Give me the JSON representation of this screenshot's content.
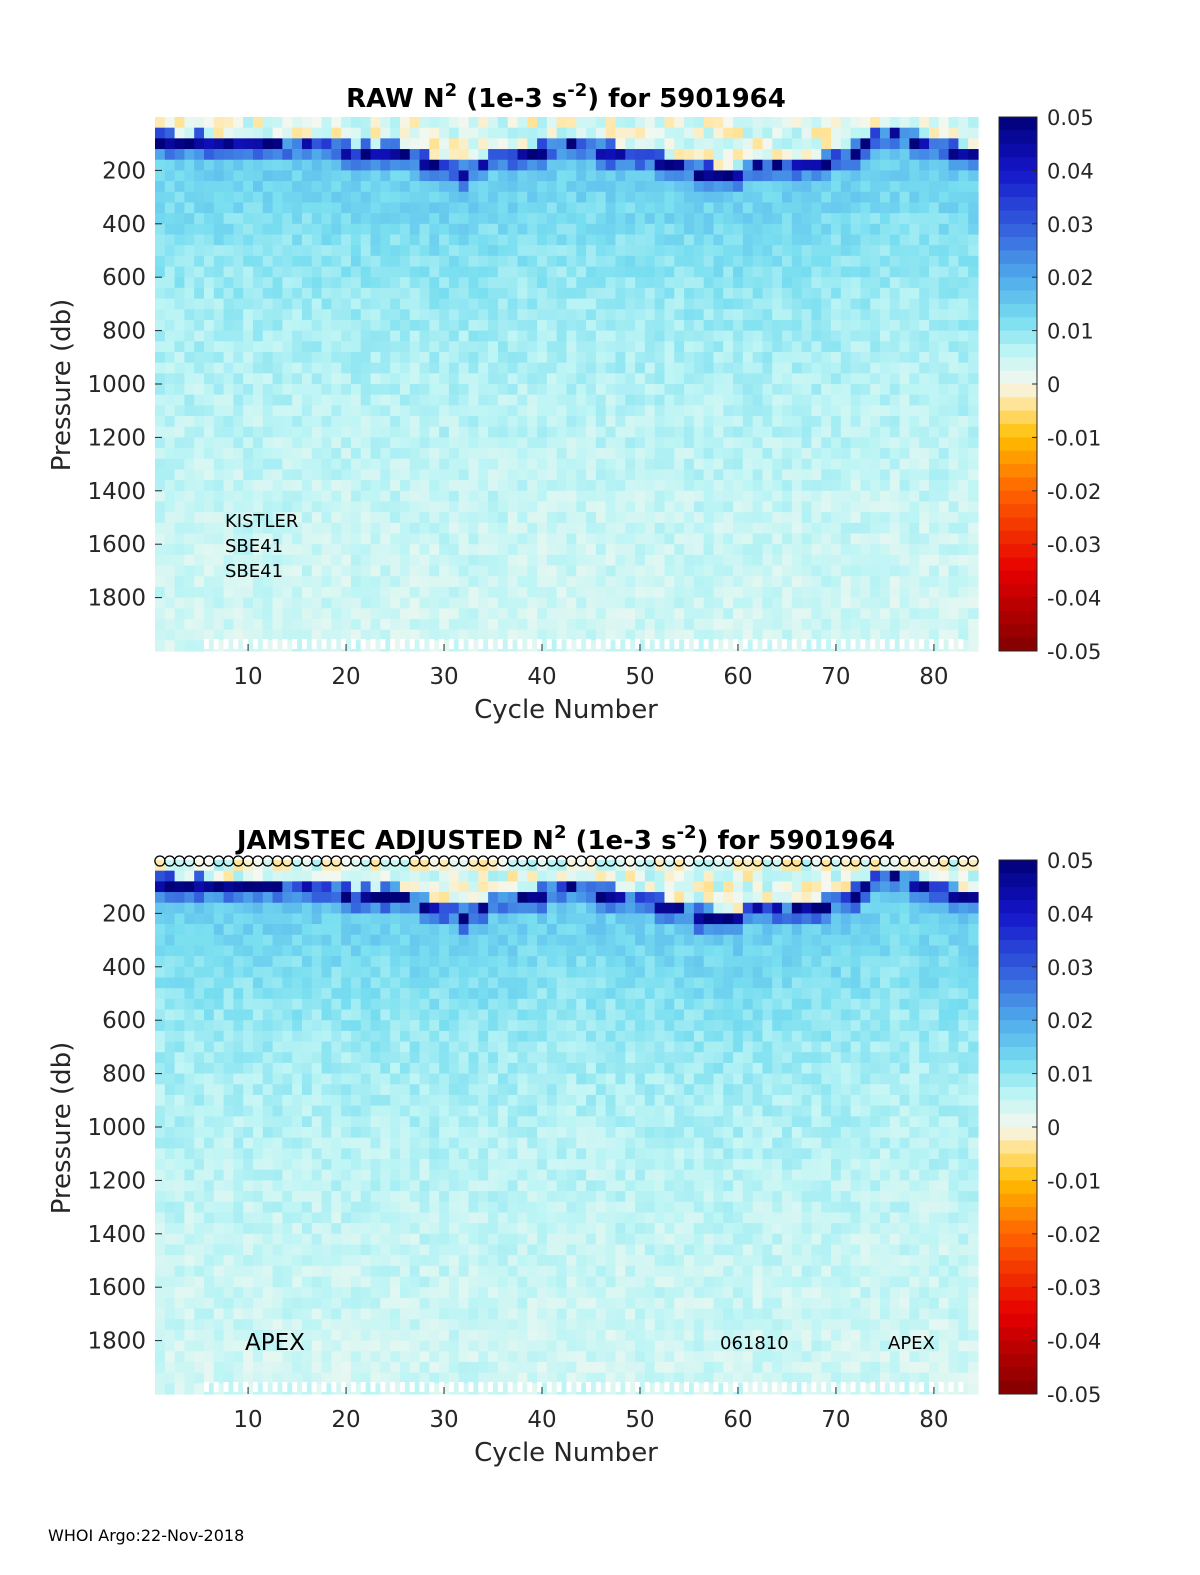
{
  "footer": "WHOI Argo:22-Nov-2018",
  "chart_data": [
    {
      "type": "heatmap",
      "title_parts": {
        "main": "RAW N",
        "sup1": "2",
        "mid": " (1e-3 s",
        "sup2": "-2",
        "end": ") for 5901964"
      },
      "xlabel": "Cycle Number",
      "ylabel": "Pressure (db)",
      "xlim": [
        1,
        84
      ],
      "ylim": [
        0,
        2000
      ],
      "y_reversed": true,
      "xticks": [
        10,
        20,
        30,
        40,
        50,
        60,
        70,
        80
      ],
      "yticks": [
        200,
        400,
        600,
        800,
        1000,
        1200,
        1400,
        1600,
        1800
      ],
      "clim": [
        -0.05,
        0.05
      ],
      "colorbar_ticks": [
        "0.05",
        "0.04",
        "0.03",
        "0.02",
        "0.01",
        "0",
        "-0.01",
        "-0.02",
        "-0.03",
        "-0.04",
        "-0.05"
      ],
      "colormap": "blue-cyan-white-yellow-red",
      "thermocline_depth_db": [
        90,
        85,
        95,
        95,
        90,
        100,
        95,
        95,
        100,
        100,
        105,
        105,
        100,
        115,
        110,
        105,
        115,
        120,
        110,
        125,
        150,
        130,
        140,
        125,
        130,
        145,
        150,
        170,
        180,
        200,
        190,
        210,
        200,
        185,
        160,
        150,
        150,
        135,
        140,
        125,
        115,
        110,
        105,
        110,
        115,
        125,
        130,
        145,
        150,
        150,
        160,
        170,
        175,
        185,
        190,
        205,
        205,
        215,
        215,
        220,
        195,
        185,
        190,
        185,
        190,
        180,
        175,
        175,
        170,
        150,
        150,
        125,
        95,
        80,
        70,
        60,
        75,
        85,
        95,
        110,
        120,
        130,
        140,
        140
      ],
      "annotations": [
        "KISTLER",
        "SBE41",
        "SBE41"
      ],
      "markers": "none"
    },
    {
      "type": "heatmap",
      "title_parts": {
        "main": "JAMSTEC  ADJUSTED N",
        "sup1": "2",
        "mid": " (1e-3 s",
        "sup2": "-2",
        "end": ") for 5901964"
      },
      "xlabel": "Cycle Number",
      "ylabel": "Pressure (db)",
      "xlim": [
        1,
        84
      ],
      "ylim": [
        0,
        2000
      ],
      "y_reversed": true,
      "xticks": [
        10,
        20,
        30,
        40,
        50,
        60,
        70,
        80
      ],
      "yticks": [
        200,
        400,
        600,
        800,
        1000,
        1200,
        1400,
        1600,
        1800
      ],
      "clim": [
        -0.05,
        0.05
      ],
      "colorbar_ticks": [
        "0.05",
        "0.04",
        "0.03",
        "0.02",
        "0.01",
        "0",
        "-0.01",
        "-0.02",
        "-0.03",
        "-0.04",
        "-0.05"
      ],
      "colormap": "blue-cyan-white-yellow-red",
      "thermocline_depth_db": [
        90,
        85,
        95,
        95,
        90,
        100,
        95,
        95,
        100,
        100,
        105,
        105,
        100,
        115,
        110,
        105,
        115,
        120,
        110,
        125,
        150,
        130,
        140,
        125,
        130,
        145,
        150,
        170,
        180,
        200,
        190,
        210,
        200,
        185,
        160,
        150,
        150,
        135,
        140,
        125,
        115,
        110,
        105,
        110,
        115,
        125,
        130,
        145,
        150,
        150,
        160,
        170,
        175,
        185,
        190,
        205,
        205,
        215,
        215,
        220,
        195,
        185,
        190,
        185,
        190,
        180,
        175,
        175,
        170,
        150,
        150,
        125,
        95,
        80,
        70,
        60,
        75,
        85,
        95,
        110,
        120,
        130,
        140,
        140
      ],
      "annotations": [
        "APEX",
        "061810",
        "APEX"
      ],
      "markers": "open-circles-along-top"
    }
  ]
}
